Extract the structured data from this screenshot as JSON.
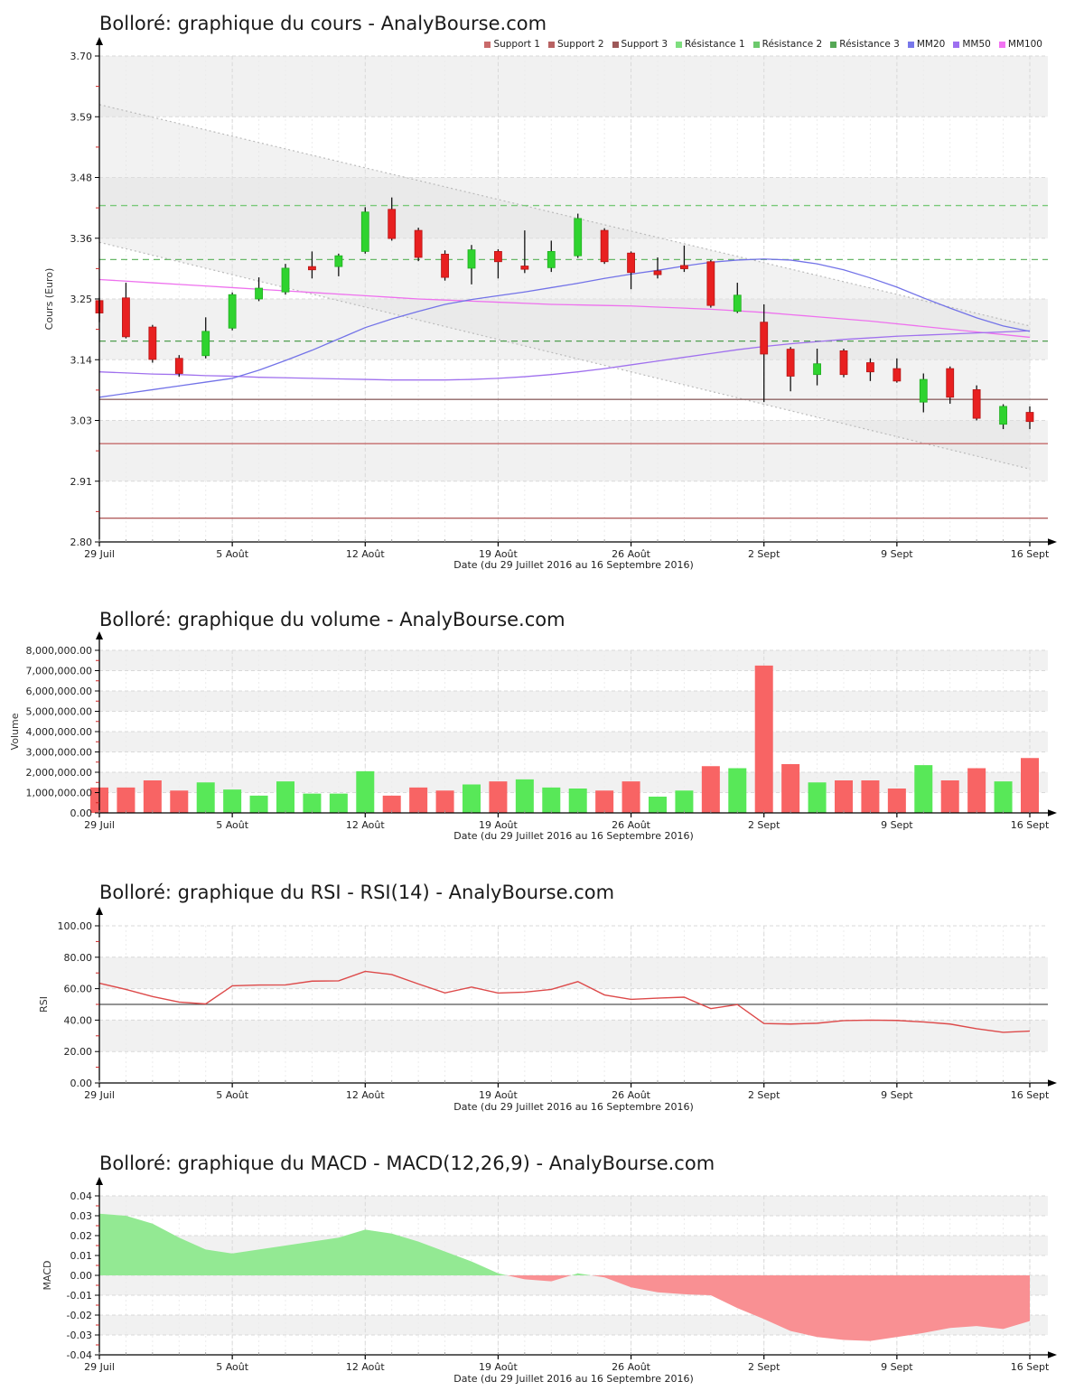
{
  "page": {
    "title_cours": "Bolloré: graphique du cours - AnalyBourse.com",
    "title_volume": "Bolloré: graphique du volume - AnalyBourse.com",
    "title_rsi": "Bolloré: graphique du RSI - RSI(14) - AnalyBourse.com",
    "title_macd": "Bolloré: graphique du MACD - MACD(12,26,9) - AnalyBourse.com",
    "date_axis_label": "Date (du 29 Juillet 2016 au 16 Septembre 2016)"
  },
  "legend": [
    {
      "label": "Support 1",
      "color": "#c96a6a"
    },
    {
      "label": "Support 2",
      "color": "#b86262"
    },
    {
      "label": "Support 3",
      "color": "#9d5858"
    },
    {
      "label": "Résistance 1",
      "color": "#7ede7e"
    },
    {
      "label": "Résistance 2",
      "color": "#6cc96c"
    },
    {
      "label": "Résistance 3",
      "color": "#55a855"
    },
    {
      "label": "MM20",
      "color": "#7878ea"
    },
    {
      "label": "MM50",
      "color": "#9d6ff0"
    },
    {
      "label": "MM100",
      "color": "#f273f2"
    }
  ],
  "colors": {
    "candle_up": "#2fd32f",
    "candle_up_edge": "#1fae1f",
    "candle_down": "#e82020",
    "candle_down_edge": "#b51414",
    "wick": "#111111",
    "volume_up": "#58e858",
    "volume_down": "#f86464",
    "rsi_line": "#dd4a4a",
    "rsi_midline": "#555555",
    "macd_positive": "#93e993",
    "macd_negative": "#f99093",
    "mm20": "#7373e8",
    "mm50": "#a071ee",
    "mm100": "#ee71ee",
    "band": "#f1f1f1",
    "grid": "#d9d9d9",
    "minor_grid": "#ececec",
    "channel_line": "#bbbbbb",
    "channel_fill": "#e3e3e3",
    "axis": "#000000",
    "minor_tick": "#cc2222"
  },
  "chart_data": [
    {
      "type": "candlestick",
      "title": "Bolloré: graphique du cours - AnalyBourse.com",
      "xlabel": "Date (du 29 Juillet 2016 au 16 Septembre 2016)",
      "ylabel": "Cours (Euro)",
      "ylim": [
        2.8,
        3.7
      ],
      "ytick_labels": [
        "3.70",
        "3.59",
        "3.48",
        "3.36",
        "3.25",
        "3.14",
        "3.03",
        "2.91",
        "2.80"
      ],
      "xtick_labels": [
        "29 Juil",
        "5 Août",
        "12 Août",
        "19 Août",
        "26 Août",
        "2 Sept",
        "9 Sept",
        "16 Sept"
      ],
      "days": 36,
      "candles_ohlc": [
        [
          3.247,
          3.252,
          3.207,
          3.224
        ],
        [
          3.252,
          3.28,
          3.177,
          3.18
        ],
        [
          3.198,
          3.202,
          3.132,
          3.138
        ],
        [
          3.14,
          3.146,
          3.106,
          3.112
        ],
        [
          3.145,
          3.216,
          3.14,
          3.19
        ],
        [
          3.196,
          3.262,
          3.192,
          3.258
        ],
        [
          3.25,
          3.29,
          3.246,
          3.27
        ],
        [
          3.263,
          3.315,
          3.258,
          3.307
        ],
        [
          3.31,
          3.338,
          3.288,
          3.304
        ],
        [
          3.31,
          3.334,
          3.292,
          3.33
        ],
        [
          3.338,
          3.42,
          3.334,
          3.411
        ],
        [
          3.416,
          3.438,
          3.358,
          3.362
        ],
        [
          3.377,
          3.382,
          3.32,
          3.327
        ],
        [
          3.333,
          3.34,
          3.284,
          3.29
        ],
        [
          3.307,
          3.35,
          3.277,
          3.341
        ],
        [
          3.338,
          3.342,
          3.288,
          3.319
        ],
        [
          3.311,
          3.377,
          3.298,
          3.305
        ],
        [
          3.308,
          3.358,
          3.3,
          3.338
        ],
        [
          3.33,
          3.408,
          3.326,
          3.399
        ],
        [
          3.377,
          3.381,
          3.315,
          3.319
        ],
        [
          3.335,
          3.338,
          3.268,
          3.299
        ],
        [
          3.302,
          3.327,
          3.288,
          3.295
        ],
        [
          3.312,
          3.349,
          3.3,
          3.306
        ],
        [
          3.319,
          3.322,
          3.234,
          3.238
        ],
        [
          3.227,
          3.28,
          3.224,
          3.257
        ],
        [
          3.207,
          3.24,
          3.059,
          3.148
        ],
        [
          3.157,
          3.161,
          3.079,
          3.107
        ],
        [
          3.11,
          3.158,
          3.09,
          3.13
        ],
        [
          3.154,
          3.158,
          3.105,
          3.11
        ],
        [
          3.132,
          3.14,
          3.098,
          3.115
        ],
        [
          3.121,
          3.14,
          3.095,
          3.098
        ],
        [
          3.059,
          3.112,
          3.04,
          3.101
        ],
        [
          3.121,
          3.125,
          3.056,
          3.068
        ],
        [
          3.082,
          3.09,
          3.025,
          3.029
        ],
        [
          3.018,
          3.055,
          3.009,
          3.051
        ],
        [
          3.04,
          3.051,
          3.009,
          3.023
        ]
      ],
      "supports": [
        {
          "label": "Support 1",
          "level": 3.064,
          "color": "#8f6565"
        },
        {
          "label": "Support 2",
          "level": 2.982,
          "color": "#c56b6b"
        },
        {
          "label": "Support 3",
          "level": 2.844,
          "color": "#b35f5f"
        }
      ],
      "resistances": [
        {
          "label": "Résistance 1",
          "level": 3.423,
          "color": "#79c979"
        },
        {
          "label": "Résistance 2",
          "level": 3.323,
          "color": "#68b868"
        },
        {
          "label": "Résistance 3",
          "level": 3.172,
          "color": "#4f9e4f"
        }
      ],
      "mm20": [
        3.068,
        3.075,
        3.082,
        3.089,
        3.096,
        3.103,
        3.118,
        3.136,
        3.155,
        3.176,
        3.197,
        3.213,
        3.227,
        3.24,
        3.249,
        3.256,
        3.263,
        3.271,
        3.279,
        3.288,
        3.296,
        3.303,
        3.311,
        3.318,
        3.322,
        3.324,
        3.322,
        3.315,
        3.304,
        3.289,
        3.272,
        3.252,
        3.233,
        3.215,
        3.2,
        3.19
      ],
      "mm50": [
        3.115,
        3.113,
        3.111,
        3.11,
        3.108,
        3.107,
        3.105,
        3.104,
        3.103,
        3.102,
        3.101,
        3.1,
        3.1,
        3.1,
        3.101,
        3.103,
        3.106,
        3.11,
        3.115,
        3.121,
        3.128,
        3.135,
        3.142,
        3.149,
        3.156,
        3.162,
        3.167,
        3.171,
        3.175,
        3.178,
        3.181,
        3.183,
        3.185,
        3.187,
        3.189,
        3.191
      ],
      "mm100": [
        3.286,
        3.283,
        3.28,
        3.277,
        3.274,
        3.271,
        3.268,
        3.265,
        3.262,
        3.259,
        3.256,
        3.253,
        3.25,
        3.248,
        3.246,
        3.244,
        3.242,
        3.24,
        3.239,
        3.238,
        3.237,
        3.235,
        3.233,
        3.231,
        3.228,
        3.225,
        3.221,
        3.217,
        3.213,
        3.209,
        3.204,
        3.199,
        3.194,
        3.189,
        3.184,
        3.179
      ],
      "channel": {
        "upper_start": 3.61,
        "upper_end": 3.2,
        "lower_start": 3.355,
        "lower_end": 2.935
      }
    },
    {
      "type": "bar",
      "title": "Bolloré: graphique du volume - AnalyBourse.com",
      "xlabel": "Date (du 29 Juillet 2016 au 16 Septembre 2016)",
      "ylabel": "Volume",
      "ylim": [
        0,
        8000000
      ],
      "ytick_labels": [
        "8,000,000.00",
        "7,000,000.00",
        "6,000,000.00",
        "5,000,000.00",
        "4,000,000.00",
        "3,000,000.00",
        "2,000,000.00",
        "1,000,000.00",
        "0.00"
      ],
      "xtick_labels": [
        "29 Juil",
        "5 Août",
        "12 Août",
        "19 Août",
        "26 Août",
        "2 Sept",
        "9 Sept",
        "16 Sept"
      ],
      "values": [
        1250000,
        1250000,
        1600000,
        1100000,
        1500000,
        1150000,
        850000,
        1550000,
        950000,
        950000,
        2050000,
        850000,
        1250000,
        1100000,
        1400000,
        1550000,
        1650000,
        1250000,
        1200000,
        1100000,
        1550000,
        800000,
        1100000,
        2300000,
        2200000,
        7250000,
        2400000,
        1500000,
        1600000,
        1600000,
        1200000,
        2350000,
        1600000,
        2200000,
        1550000,
        2700000
      ],
      "directions": [
        "down",
        "down",
        "down",
        "down",
        "up",
        "up",
        "up",
        "up",
        "up",
        "up",
        "up",
        "down",
        "down",
        "down",
        "up",
        "down",
        "up",
        "up",
        "up",
        "down",
        "down",
        "up",
        "up",
        "down",
        "up",
        "down",
        "down",
        "up",
        "down",
        "down",
        "down",
        "up",
        "down",
        "down",
        "up",
        "down"
      ]
    },
    {
      "type": "line",
      "title": "Bolloré: graphique du RSI - RSI(14) - AnalyBourse.com",
      "xlabel": "Date (du 29 Juillet 2016 au 16 Septembre 2016)",
      "ylabel": "RSI",
      "ylim": [
        0,
        100
      ],
      "ytick_labels": [
        "100.00",
        "80.00",
        "60.00",
        "40.00",
        "20.00",
        "0.00"
      ],
      "xtick_labels": [
        "29 Juil",
        "5 Août",
        "12 Août",
        "19 Août",
        "26 Août",
        "2 Sept",
        "9 Sept",
        "16 Sept"
      ],
      "midline": 50,
      "values": [
        63.5,
        59.5,
        55.0,
        51.5,
        50.3,
        61.8,
        62.3,
        62.4,
        64.8,
        65.0,
        71.0,
        69.0,
        63.0,
        57.3,
        61.0,
        57.2,
        57.8,
        59.5,
        64.5,
        56.0,
        53.2,
        54.0,
        54.6,
        47.3,
        49.9,
        37.8,
        37.5,
        38.0,
        39.7,
        40.0,
        39.8,
        38.8,
        37.5,
        34.5,
        32.2,
        33.0
      ]
    },
    {
      "type": "area",
      "title": "Bolloré: graphique du MACD - MACD(12,26,9) - AnalyBourse.com",
      "xlabel": "Date (du 29 Juillet 2016 au 16 Septembre 2016)",
      "ylabel": "MACD",
      "ylim": [
        -0.04,
        0.04
      ],
      "ytick_labels": [
        "0.04",
        "0.03",
        "0.02",
        "0.01",
        "0.00",
        "-0.01",
        "-0.02",
        "-0.03",
        "-0.04"
      ],
      "xtick_labels": [
        "29 Juil",
        "5 Août",
        "12 Août",
        "19 Août",
        "26 Août",
        "2 Sept",
        "9 Sept",
        "16 Sept"
      ],
      "values": [
        0.031,
        0.03,
        0.026,
        0.019,
        0.013,
        0.011,
        0.013,
        0.015,
        0.017,
        0.019,
        0.023,
        0.021,
        0.017,
        0.012,
        0.007,
        0.001,
        -0.002,
        -0.003,
        0.001,
        -0.001,
        -0.006,
        -0.0085,
        -0.0095,
        -0.01,
        -0.0165,
        -0.022,
        -0.028,
        -0.031,
        -0.0325,
        -0.033,
        -0.031,
        -0.029,
        -0.0265,
        -0.0255,
        -0.027,
        -0.023
      ]
    }
  ]
}
